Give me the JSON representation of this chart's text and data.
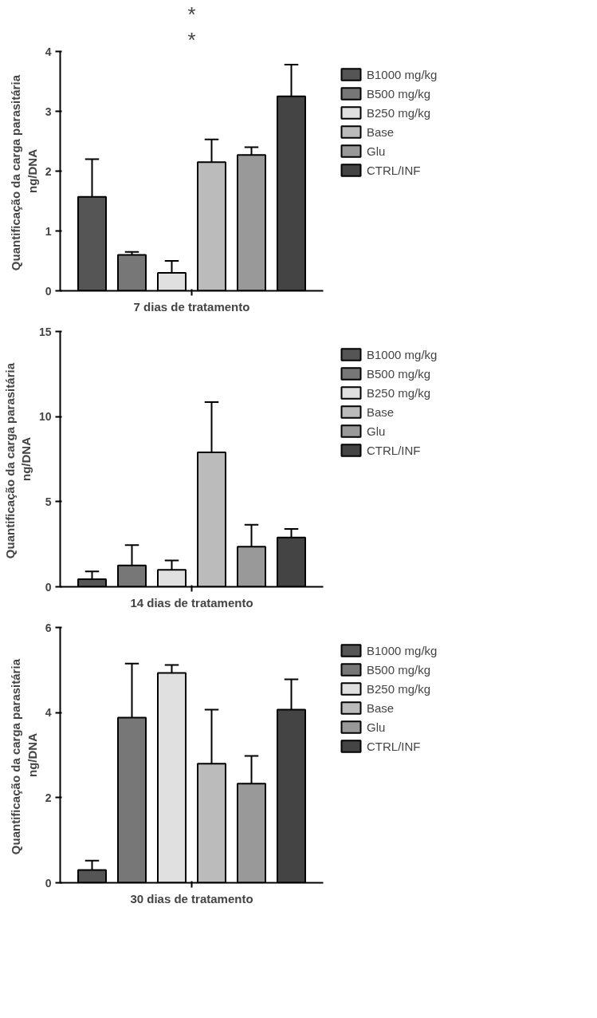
{
  "chart_data": [
    {
      "type": "bar",
      "xlabel": "7 dias de tratamento",
      "ylabel": "Quantificação da carga  parasitária\nng/DNA",
      "categories": [
        null
      ],
      "ylim": [
        0,
        4
      ],
      "yticks": [
        0,
        1,
        2,
        3,
        4
      ],
      "legend": "right",
      "annotations": [
        "*",
        "*"
      ],
      "series": [
        {
          "name": "B1000 mg/kg",
          "color": "#555555",
          "values": [
            1.57
          ],
          "errors": [
            [
              1.57,
              2.2
            ]
          ]
        },
        {
          "name": "B500 mg/kg",
          "color": "#777777",
          "values": [
            0.6
          ],
          "errors": [
            [
              0.6,
              0.65
            ]
          ]
        },
        {
          "name": "B250 mg/kg",
          "color": "#e0e0e0",
          "values": [
            0.3
          ],
          "errors": [
            [
              0.3,
              0.5
            ]
          ]
        },
        {
          "name": "Base",
          "color": "#bbbbbb",
          "values": [
            2.15
          ],
          "errors": [
            [
              2.15,
              2.53
            ]
          ]
        },
        {
          "name": "Glu",
          "color": "#999999",
          "values": [
            2.27
          ],
          "errors": [
            [
              2.27,
              2.4
            ]
          ]
        },
        {
          "name": "CTRL/INF",
          "color": "#444444",
          "values": [
            3.25
          ],
          "errors": [
            [
              3.25,
              3.78
            ]
          ]
        }
      ]
    },
    {
      "type": "bar",
      "xlabel": "14 dias de tratamento",
      "ylabel": "Quantificação da carga  parasitária\nng/DNA",
      "categories": [
        null
      ],
      "ylim": [
        0,
        15
      ],
      "yticks": [
        0,
        5,
        10,
        15
      ],
      "legend": "right",
      "series": [
        {
          "name": "B1000 mg/kg",
          "color": "#555555",
          "values": [
            0.45
          ],
          "errors": [
            [
              0.45,
              0.9
            ]
          ]
        },
        {
          "name": "B500 mg/kg",
          "color": "#777777",
          "values": [
            1.25
          ],
          "errors": [
            [
              1.25,
              2.45
            ]
          ]
        },
        {
          "name": "B250 mg/kg",
          "color": "#e0e0e0",
          "values": [
            1.0
          ],
          "errors": [
            [
              1.0,
              1.55
            ]
          ]
        },
        {
          "name": "Base",
          "color": "#bbbbbb",
          "values": [
            7.9
          ],
          "errors": [
            [
              7.9,
              10.85
            ]
          ]
        },
        {
          "name": "Glu",
          "color": "#999999",
          "values": [
            2.35
          ],
          "errors": [
            [
              2.35,
              3.65
            ]
          ]
        },
        {
          "name": "CTRL/INF",
          "color": "#444444",
          "values": [
            2.9
          ],
          "errors": [
            [
              2.9,
              3.4
            ]
          ]
        }
      ]
    },
    {
      "type": "bar",
      "xlabel": "30 dias de tratamento",
      "ylabel": "Quantificação da carga  parasitária\nng/DNA",
      "categories": [
        null
      ],
      "ylim": [
        0,
        6
      ],
      "yticks": [
        0,
        2,
        4,
        6
      ],
      "legend": "right",
      "series": [
        {
          "name": "B1000 mg/kg",
          "color": "#555555",
          "values": [
            0.3
          ],
          "errors": [
            [
              0.3,
              0.52
            ]
          ]
        },
        {
          "name": "B500 mg/kg",
          "color": "#777777",
          "values": [
            3.88
          ],
          "errors": [
            [
              3.88,
              5.15
            ]
          ]
        },
        {
          "name": "B250 mg/kg",
          "color": "#e0e0e0",
          "values": [
            4.93
          ],
          "errors": [
            [
              4.93,
              5.12
            ]
          ]
        },
        {
          "name": "Base",
          "color": "#bbbbbb",
          "values": [
            2.8
          ],
          "errors": [
            [
              2.8,
              4.07
            ]
          ]
        },
        {
          "name": "Glu",
          "color": "#999999",
          "values": [
            2.33
          ],
          "errors": [
            [
              2.33,
              2.98
            ]
          ]
        },
        {
          "name": "CTRL/INF",
          "color": "#444444",
          "values": [
            4.07
          ],
          "errors": [
            [
              4.07,
              4.78
            ]
          ]
        }
      ]
    }
  ]
}
